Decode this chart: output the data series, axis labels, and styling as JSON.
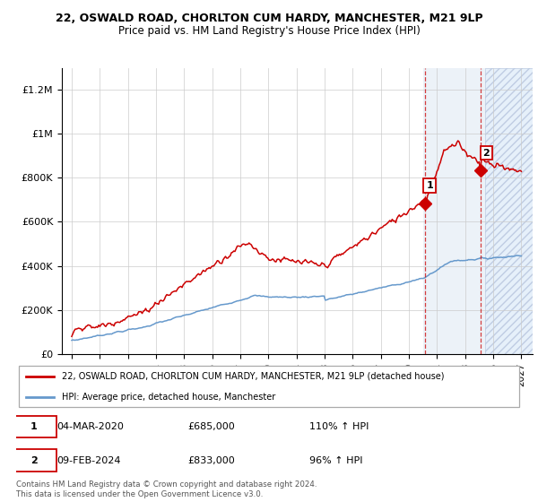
{
  "title1": "22, OSWALD ROAD, CHORLTON CUM HARDY, MANCHESTER, M21 9LP",
  "title2": "Price paid vs. HM Land Registry's House Price Index (HPI)",
  "legend_line1": "22, OSWALD ROAD, CHORLTON CUM HARDY, MANCHESTER, M21 9LP (detached house)",
  "legend_line2": "HPI: Average price, detached house, Manchester",
  "annotation1_date": "04-MAR-2020",
  "annotation1_price": "£685,000",
  "annotation1_hpi": "110% ↑ HPI",
  "annotation2_date": "09-FEB-2024",
  "annotation2_price": "£833,000",
  "annotation2_hpi": "96% ↑ HPI",
  "footnote": "Contains HM Land Registry data © Crown copyright and database right 2024.\nThis data is licensed under the Open Government Licence v3.0.",
  "property_color": "#cc0000",
  "hpi_color": "#6699cc",
  "hatch_color": "#ddeeff",
  "grid_color": "#cccccc",
  "yticks": [
    0,
    200000,
    400000,
    600000,
    800000,
    1000000,
    1200000
  ],
  "buy1_year": 2020.17,
  "buy1_val": 685000,
  "buy2_year": 2024.1,
  "buy2_val": 833000,
  "shade_start": 2020.0,
  "hatch_start": 2024.42,
  "xlim_left": 1994.3,
  "xlim_right": 2027.8,
  "ylim_top": 1300000
}
